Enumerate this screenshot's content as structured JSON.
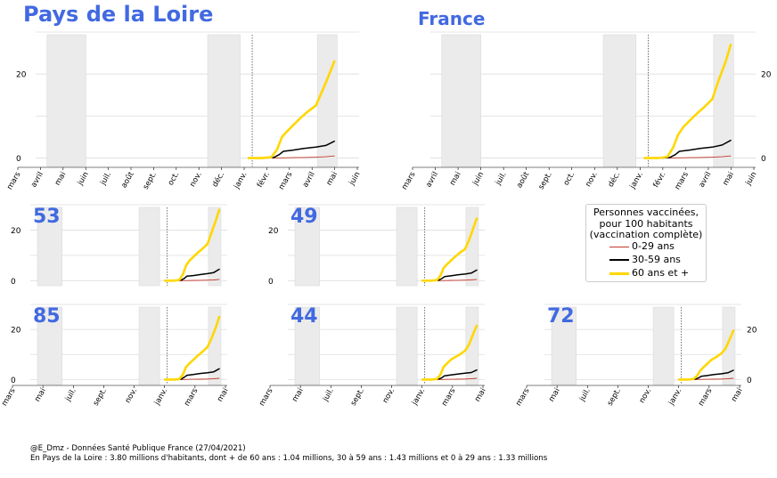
{
  "titles": {
    "region": "Pays de la Loire",
    "national": "France"
  },
  "legend": {
    "title_lines": [
      "Personnes vaccinées,",
      "pour 100 habitants",
      "(vaccination complète)"
    ],
    "entries": [
      "0-29 ans",
      "30-59 ans",
      "60 ans et +"
    ]
  },
  "footer": {
    "line1": "@E_Dmz - Données Santé Publique France (27/04/2021)",
    "line2": "En Pays de la Loire : 3.80 millions d'habitants, dont + de 60 ans : 1.04 millions, 30 à 59 ans : 1.43 millions et 0 à 29 ans : 1.33 millions"
  },
  "colors": {
    "title": "#4169e1",
    "age_0_29": "#c0392b",
    "age_30_59": "#000000",
    "age_60_plus": "#ffd700",
    "shade": "#ebebeb",
    "grid": "#dddddd"
  },
  "chart_data": [
    {
      "type": "line",
      "title": "Pays de la Loire",
      "xlabel": "",
      "ylabel": "",
      "xlim": [
        "2020-03-01",
        "2021-06-01"
      ],
      "ylim": [
        -2,
        30
      ],
      "yticks": [
        0,
        20
      ],
      "ytick_side": "left",
      "xtick_labels": [
        "mars",
        "avril",
        "mai",
        "juin",
        "juil.",
        "août",
        "sept.",
        "oct.",
        "nov.",
        "déc.",
        "janv.",
        "févr.",
        "mars",
        "avril",
        "mai",
        "juin"
      ],
      "shaded_periods": [
        [
          "2020-03-17",
          "2020-05-11"
        ],
        [
          "2020-10-30",
          "2020-12-15"
        ],
        [
          "2021-04-03",
          "2021-05-01"
        ]
      ],
      "reference_date": "2021-01-01",
      "series": [
        {
          "name": "0-29 ans",
          "x": [
            "2020-12-27",
            "2021-01-15",
            "2021-02-01",
            "2021-02-15",
            "2021-03-01",
            "2021-03-15",
            "2021-04-01",
            "2021-04-15",
            "2021-04-27"
          ],
          "y": [
            0,
            0,
            0,
            0.05,
            0.1,
            0.15,
            0.2,
            0.3,
            0.5
          ]
        },
        {
          "name": "30-59 ans",
          "x": [
            "2020-12-27",
            "2021-01-15",
            "2021-01-31",
            "2021-02-08",
            "2021-02-14",
            "2021-02-28",
            "2021-03-15",
            "2021-04-01",
            "2021-04-15",
            "2021-04-27"
          ],
          "y": [
            0,
            0,
            0.1,
            0.8,
            1.6,
            1.9,
            2.3,
            2.6,
            3.0,
            4.0
          ]
        },
        {
          "name": "60 ans et +",
          "x": [
            "2020-12-27",
            "2021-01-15",
            "2021-01-28",
            "2021-02-05",
            "2021-02-12",
            "2021-02-20",
            "2021-03-01",
            "2021-03-10",
            "2021-03-20",
            "2021-04-01",
            "2021-04-10",
            "2021-04-20",
            "2021-04-27"
          ],
          "y": [
            0,
            0,
            0.2,
            2.0,
            5.0,
            6.5,
            8.0,
            9.5,
            11.0,
            12.5,
            16.0,
            20.0,
            23.0
          ]
        }
      ]
    },
    {
      "type": "line",
      "title": "France",
      "xlabel": "",
      "ylabel": "",
      "xlim": [
        "2020-03-01",
        "2021-06-01"
      ],
      "ylim": [
        -2,
        30
      ],
      "yticks": [
        0,
        20
      ],
      "ytick_side": "right",
      "xtick_labels": [
        "mars",
        "avril",
        "mai",
        "juin",
        "juil.",
        "août",
        "sept.",
        "oct.",
        "nov.",
        "déc.",
        "janv.",
        "févr.",
        "mars",
        "avril",
        "mai",
        "juin"
      ],
      "shaded_periods": [
        [
          "2020-03-17",
          "2020-05-11"
        ],
        [
          "2020-10-30",
          "2020-12-15"
        ],
        [
          "2021-04-03",
          "2021-05-01"
        ]
      ],
      "reference_date": "2021-01-01",
      "series": [
        {
          "name": "0-29 ans",
          "x": [
            "2020-12-27",
            "2021-01-15",
            "2021-02-01",
            "2021-02-15",
            "2021-03-01",
            "2021-03-15",
            "2021-04-01",
            "2021-04-15",
            "2021-04-27"
          ],
          "y": [
            0,
            0,
            0,
            0.05,
            0.1,
            0.15,
            0.2,
            0.3,
            0.5
          ]
        },
        {
          "name": "30-59 ans",
          "x": [
            "2020-12-27",
            "2021-01-15",
            "2021-01-31",
            "2021-02-08",
            "2021-02-14",
            "2021-02-28",
            "2021-03-15",
            "2021-04-01",
            "2021-04-15",
            "2021-04-27"
          ],
          "y": [
            0,
            0,
            0.1,
            0.8,
            1.6,
            1.9,
            2.3,
            2.6,
            3.1,
            4.2
          ]
        },
        {
          "name": "60 ans et +",
          "x": [
            "2020-12-27",
            "2021-01-15",
            "2021-01-28",
            "2021-02-05",
            "2021-02-12",
            "2021-02-20",
            "2021-03-01",
            "2021-03-10",
            "2021-03-20",
            "2021-04-01",
            "2021-04-10",
            "2021-04-20",
            "2021-04-27"
          ],
          "y": [
            0,
            0,
            0.3,
            2.5,
            5.5,
            7.5,
            9.0,
            10.5,
            12.0,
            14.0,
            18.5,
            23.0,
            27.0
          ]
        }
      ]
    },
    {
      "type": "line",
      "title": "53",
      "xlabel": "",
      "ylabel": "",
      "xlim": [
        "2020-03-01",
        "2021-05-15"
      ],
      "ylim": [
        -2,
        30
      ],
      "yticks": [
        0,
        20
      ],
      "ytick_side": "left",
      "xtick_labels": [],
      "shaded_periods": [
        [
          "2020-03-17",
          "2020-05-11"
        ],
        [
          "2020-10-30",
          "2020-12-15"
        ],
        [
          "2021-04-03",
          "2021-05-01"
        ]
      ],
      "reference_date": "2021-01-01",
      "series": [
        {
          "name": "0-29 ans",
          "x": [
            "2020-12-27",
            "2021-01-15",
            "2021-02-01",
            "2021-02-15",
            "2021-03-01",
            "2021-03-15",
            "2021-04-01",
            "2021-04-15",
            "2021-04-27"
          ],
          "y": [
            0,
            0,
            0,
            0.05,
            0.1,
            0.15,
            0.2,
            0.3,
            0.5
          ]
        },
        {
          "name": "30-59 ans",
          "x": [
            "2020-12-27",
            "2021-01-15",
            "2021-01-31",
            "2021-02-08",
            "2021-02-14",
            "2021-02-28",
            "2021-03-15",
            "2021-04-01",
            "2021-04-15",
            "2021-04-27"
          ],
          "y": [
            0,
            0,
            0.1,
            0.9,
            1.8,
            2.0,
            2.4,
            2.8,
            3.2,
            4.5
          ]
        },
        {
          "name": "60 ans et +",
          "x": [
            "2020-12-27",
            "2021-01-15",
            "2021-01-28",
            "2021-02-05",
            "2021-02-12",
            "2021-02-20",
            "2021-03-01",
            "2021-03-10",
            "2021-03-20",
            "2021-04-01",
            "2021-04-10",
            "2021-04-20",
            "2021-04-27"
          ],
          "y": [
            0,
            0,
            0.3,
            2.5,
            6.0,
            8.0,
            9.5,
            11.0,
            12.5,
            14.5,
            19.0,
            24.0,
            28.0
          ]
        }
      ]
    },
    {
      "type": "line",
      "title": "49",
      "xlabel": "",
      "ylabel": "",
      "xlim": [
        "2020-03-01",
        "2021-05-15"
      ],
      "ylim": [
        -2,
        30
      ],
      "yticks": [
        0,
        20
      ],
      "ytick_side": "left",
      "xtick_labels": [],
      "shaded_periods": [
        [
          "2020-03-17",
          "2020-05-11"
        ],
        [
          "2020-10-30",
          "2020-12-15"
        ],
        [
          "2021-04-03",
          "2021-05-01"
        ]
      ],
      "reference_date": "2021-01-01",
      "series": [
        {
          "name": "0-29 ans",
          "x": [
            "2020-12-27",
            "2021-01-15",
            "2021-02-01",
            "2021-02-15",
            "2021-03-01",
            "2021-03-15",
            "2021-04-01",
            "2021-04-15",
            "2021-04-27"
          ],
          "y": [
            0,
            0,
            0,
            0.05,
            0.1,
            0.15,
            0.2,
            0.3,
            0.5
          ]
        },
        {
          "name": "30-59 ans",
          "x": [
            "2020-12-27",
            "2021-01-15",
            "2021-01-31",
            "2021-02-08",
            "2021-02-14",
            "2021-02-28",
            "2021-03-15",
            "2021-04-01",
            "2021-04-15",
            "2021-04-27"
          ],
          "y": [
            0,
            0,
            0.1,
            0.8,
            1.6,
            1.9,
            2.3,
            2.6,
            3.0,
            4.2
          ]
        },
        {
          "name": "60 ans et +",
          "x": [
            "2020-12-27",
            "2021-01-15",
            "2021-01-28",
            "2021-02-05",
            "2021-02-12",
            "2021-02-20",
            "2021-03-01",
            "2021-03-10",
            "2021-03-20",
            "2021-04-01",
            "2021-04-10",
            "2021-04-20",
            "2021-04-27"
          ],
          "y": [
            0,
            0,
            0.2,
            2.0,
            5.0,
            6.5,
            8.0,
            9.5,
            11.0,
            12.5,
            16.0,
            21.0,
            24.5
          ]
        }
      ]
    },
    {
      "type": "line",
      "title": "85",
      "xlabel": "",
      "ylabel": "",
      "xlim": [
        "2020-03-01",
        "2021-05-15"
      ],
      "ylim": [
        -2,
        30
      ],
      "yticks": [
        0,
        20
      ],
      "ytick_side": "left",
      "xtick_labels": [
        "mars",
        "mai",
        "juil.",
        "sept.",
        "nov.",
        "janv.",
        "mars",
        "mai"
      ],
      "shaded_periods": [
        [
          "2020-03-17",
          "2020-05-11"
        ],
        [
          "2020-10-30",
          "2020-12-15"
        ],
        [
          "2021-04-03",
          "2021-05-01"
        ]
      ],
      "reference_date": "2021-01-01",
      "series": [
        {
          "name": "0-29 ans",
          "x": [
            "2020-12-27",
            "2021-01-15",
            "2021-02-01",
            "2021-02-15",
            "2021-03-01",
            "2021-03-15",
            "2021-04-01",
            "2021-04-15",
            "2021-04-27"
          ],
          "y": [
            0,
            0,
            0,
            0.05,
            0.1,
            0.15,
            0.2,
            0.3,
            0.5
          ]
        },
        {
          "name": "30-59 ans",
          "x": [
            "2020-12-27",
            "2021-01-15",
            "2021-01-31",
            "2021-02-08",
            "2021-02-14",
            "2021-02-28",
            "2021-03-15",
            "2021-04-01",
            "2021-04-15",
            "2021-04-27"
          ],
          "y": [
            0,
            0,
            0.1,
            0.9,
            1.7,
            2.0,
            2.4,
            2.7,
            3.1,
            4.3
          ]
        },
        {
          "name": "60 ans et +",
          "x": [
            "2020-12-27",
            "2021-01-15",
            "2021-01-28",
            "2021-02-05",
            "2021-02-12",
            "2021-02-20",
            "2021-03-01",
            "2021-03-10",
            "2021-03-20",
            "2021-04-01",
            "2021-04-10",
            "2021-04-20",
            "2021-04-27"
          ],
          "y": [
            0,
            0,
            0.2,
            2.0,
            5.0,
            6.5,
            8.0,
            9.5,
            11.0,
            13.0,
            16.5,
            21.0,
            25.0
          ]
        }
      ]
    },
    {
      "type": "line",
      "title": "44",
      "xlabel": "",
      "ylabel": "",
      "xlim": [
        "2020-03-01",
        "2021-05-15"
      ],
      "ylim": [
        -2,
        30
      ],
      "yticks": [],
      "ytick_side": "left",
      "xtick_labels": [
        "mars",
        "mai",
        "juil.",
        "sept.",
        "nov.",
        "janv.",
        "mars",
        "mai"
      ],
      "shaded_periods": [
        [
          "2020-03-17",
          "2020-05-11"
        ],
        [
          "2020-10-30",
          "2020-12-15"
        ],
        [
          "2021-04-03",
          "2021-05-01"
        ]
      ],
      "reference_date": "2021-01-01",
      "series": [
        {
          "name": "0-29 ans",
          "x": [
            "2020-12-27",
            "2021-01-15",
            "2021-02-01",
            "2021-02-15",
            "2021-03-01",
            "2021-03-15",
            "2021-04-01",
            "2021-04-15",
            "2021-04-27"
          ],
          "y": [
            0,
            0,
            0,
            0.05,
            0.1,
            0.15,
            0.2,
            0.3,
            0.5
          ]
        },
        {
          "name": "30-59 ans",
          "x": [
            "2020-12-27",
            "2021-01-15",
            "2021-01-31",
            "2021-02-08",
            "2021-02-14",
            "2021-02-28",
            "2021-03-15",
            "2021-04-01",
            "2021-04-15",
            "2021-04-27"
          ],
          "y": [
            0,
            0,
            0.1,
            0.7,
            1.5,
            1.8,
            2.2,
            2.5,
            2.8,
            3.8
          ]
        },
        {
          "name": "60 ans et +",
          "x": [
            "2020-12-27",
            "2021-01-15",
            "2021-01-28",
            "2021-02-05",
            "2021-02-12",
            "2021-02-20",
            "2021-03-01",
            "2021-03-10",
            "2021-03-20",
            "2021-04-01",
            "2021-04-10",
            "2021-04-20",
            "2021-04-27"
          ],
          "y": [
            0,
            0,
            0.2,
            2.0,
            5.0,
            6.5,
            8.0,
            9.0,
            10.0,
            11.5,
            14.0,
            18.5,
            21.5
          ]
        }
      ]
    },
    {
      "type": "line",
      "title": "72",
      "xlabel": "",
      "ylabel": "",
      "xlim": [
        "2020-03-01",
        "2021-05-15"
      ],
      "ylim": [
        -2,
        30
      ],
      "yticks": [
        0,
        20
      ],
      "ytick_side": "right",
      "xtick_labels": [
        "mars",
        "mai",
        "juil.",
        "sept.",
        "nov.",
        "janv.",
        "mars",
        "mai"
      ],
      "shaded_periods": [
        [
          "2020-03-17",
          "2020-05-11"
        ],
        [
          "2020-10-30",
          "2020-12-15"
        ],
        [
          "2021-04-03",
          "2021-05-01"
        ]
      ],
      "reference_date": "2021-01-01",
      "series": [
        {
          "name": "0-29 ans",
          "x": [
            "2020-12-27",
            "2021-01-15",
            "2021-02-01",
            "2021-02-15",
            "2021-03-01",
            "2021-03-15",
            "2021-04-01",
            "2021-04-15",
            "2021-04-27"
          ],
          "y": [
            0,
            0,
            0,
            0.05,
            0.1,
            0.15,
            0.2,
            0.3,
            0.5
          ]
        },
        {
          "name": "30-59 ans",
          "x": [
            "2020-12-27",
            "2021-01-15",
            "2021-01-31",
            "2021-02-08",
            "2021-02-14",
            "2021-02-28",
            "2021-03-15",
            "2021-04-01",
            "2021-04-15",
            "2021-04-27"
          ],
          "y": [
            0,
            0,
            0.1,
            0.6,
            1.3,
            1.6,
            2.0,
            2.3,
            2.7,
            3.7
          ]
        },
        {
          "name": "60 ans et +",
          "x": [
            "2020-12-27",
            "2021-01-15",
            "2021-01-28",
            "2021-02-05",
            "2021-02-12",
            "2021-02-20",
            "2021-03-01",
            "2021-03-10",
            "2021-03-20",
            "2021-04-01",
            "2021-04-10",
            "2021-04-20",
            "2021-04-27"
          ],
          "y": [
            0,
            0,
            0.2,
            1.5,
            3.5,
            5.0,
            6.5,
            8.0,
            9.0,
            10.5,
            12.5,
            16.5,
            19.5
          ]
        }
      ]
    }
  ]
}
